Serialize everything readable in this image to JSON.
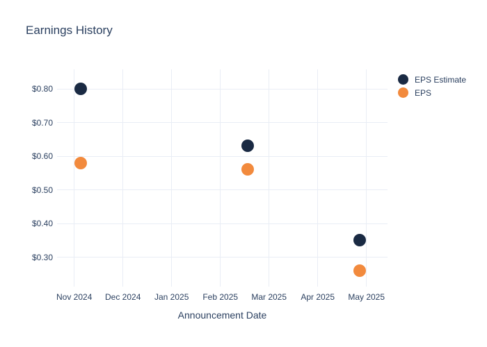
{
  "title": "Earnings History",
  "axes": {
    "x_title": "Announcement Date",
    "x_ticks": [
      "Nov 2024",
      "Dec 2024",
      "Jan 2025",
      "Feb 2025",
      "Mar 2025",
      "Apr 2025",
      "May 2025"
    ],
    "y_ticks": [
      {
        "label": "$0.80",
        "value": 0.8
      },
      {
        "label": "$0.70",
        "value": 0.7
      },
      {
        "label": "$0.60",
        "value": 0.6
      },
      {
        "label": "$0.50",
        "value": 0.5
      },
      {
        "label": "$0.40",
        "value": 0.4
      },
      {
        "label": "$0.30",
        "value": 0.3
      }
    ]
  },
  "legend": [
    {
      "label": "EPS Estimate",
      "color": "#1a2a43"
    },
    {
      "label": "EPS",
      "color": "#f28a3d"
    }
  ],
  "colors": {
    "background": "#ffffff",
    "text": "#2a3f5f",
    "grid": "#e9edf5",
    "eps_estimate": "#1a2a43",
    "eps": "#f28a3d"
  },
  "chart_data": {
    "type": "scatter",
    "title": "Earnings History",
    "xlabel": "Announcement Date",
    "ylabel": "",
    "x_tick_labels": [
      "Nov 2024",
      "Dec 2024",
      "Jan 2025",
      "Feb 2025",
      "Mar 2025",
      "Apr 2025",
      "May 2025"
    ],
    "y_tick_values": [
      0.8,
      0.7,
      0.6,
      0.5,
      0.4,
      0.3
    ],
    "ylim": [
      0.2,
      0.86
    ],
    "grid": true,
    "legend_position": "right",
    "marker_size_px": 18,
    "series": [
      {
        "name": "EPS Estimate",
        "color": "#1a2a43",
        "points": [
          {
            "x_approx": "early Nov 2024",
            "x_months_after_nov_2024": 0.13,
            "y": 0.8
          },
          {
            "x_approx": "mid Feb 2025",
            "x_months_after_nov_2024": 3.56,
            "y": 0.63
          },
          {
            "x_approx": "late Apr 2025",
            "x_months_after_nov_2024": 5.86,
            "y": 0.35
          }
        ]
      },
      {
        "name": "EPS",
        "color": "#f28a3d",
        "points": [
          {
            "x_approx": "early Nov 2024",
            "x_months_after_nov_2024": 0.13,
            "y": 0.58
          },
          {
            "x_approx": "mid Feb 2025",
            "x_months_after_nov_2024": 3.56,
            "y": 0.56
          },
          {
            "x_approx": "late Apr 2025",
            "x_months_after_nov_2024": 5.86,
            "y": 0.26
          }
        ]
      }
    ]
  }
}
